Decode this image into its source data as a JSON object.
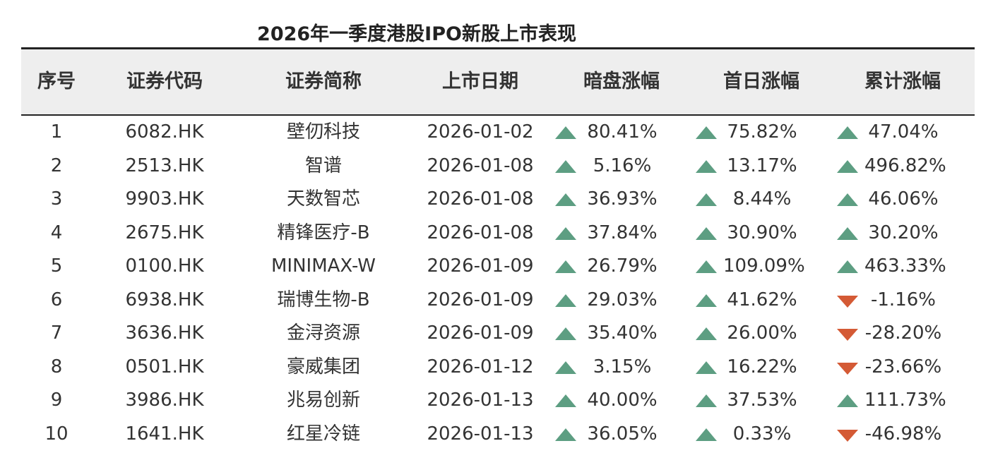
{
  "title": "2026年一季度港股IPO新股上市表现",
  "colors": {
    "up": "#5d9e82",
    "down": "#d45a35",
    "header_bg": "#eeeeee"
  },
  "columns": [
    "序号",
    "证券代码",
    "证券简称",
    "上市日期",
    "暗盘涨幅",
    "首日涨幅",
    "累计涨幅"
  ],
  "rows": [
    {
      "no": "1",
      "code": "6082.HK",
      "name": "壁仞科技",
      "date": "2026-01-02",
      "dark": {
        "dir": "up",
        "value": "80.41%"
      },
      "first": {
        "dir": "up",
        "value": "75.82%"
      },
      "cum": {
        "dir": "up",
        "value": "47.04%"
      }
    },
    {
      "no": "2",
      "code": "2513.HK",
      "name": "智谱",
      "date": "2026-01-08",
      "dark": {
        "dir": "up",
        "value": "5.16%"
      },
      "first": {
        "dir": "up",
        "value": "13.17%"
      },
      "cum": {
        "dir": "up",
        "value": "496.82%"
      }
    },
    {
      "no": "3",
      "code": "9903.HK",
      "name": "天数智芯",
      "date": "2026-01-08",
      "dark": {
        "dir": "up",
        "value": "36.93%"
      },
      "first": {
        "dir": "up",
        "value": "8.44%"
      },
      "cum": {
        "dir": "up",
        "value": "46.06%"
      }
    },
    {
      "no": "4",
      "code": "2675.HK",
      "name": "精锋医疗-B",
      "date": "2026-01-08",
      "dark": {
        "dir": "up",
        "value": "37.84%"
      },
      "first": {
        "dir": "up",
        "value": "30.90%"
      },
      "cum": {
        "dir": "up",
        "value": "30.20%"
      }
    },
    {
      "no": "5",
      "code": "0100.HK",
      "name": "MINIMAX-W",
      "date": "2026-01-09",
      "dark": {
        "dir": "up",
        "value": "26.79%"
      },
      "first": {
        "dir": "up",
        "value": "109.09%"
      },
      "cum": {
        "dir": "up",
        "value": "463.33%"
      }
    },
    {
      "no": "6",
      "code": "6938.HK",
      "name": "瑞博生物-B",
      "date": "2026-01-09",
      "dark": {
        "dir": "up",
        "value": "29.03%"
      },
      "first": {
        "dir": "up",
        "value": "41.62%"
      },
      "cum": {
        "dir": "down",
        "value": "-1.16%"
      }
    },
    {
      "no": "7",
      "code": "3636.HK",
      "name": "金浔资源",
      "date": "2026-01-09",
      "dark": {
        "dir": "up",
        "value": "35.40%"
      },
      "first": {
        "dir": "up",
        "value": "26.00%"
      },
      "cum": {
        "dir": "down",
        "value": "-28.20%"
      }
    },
    {
      "no": "8",
      "code": "0501.HK",
      "name": "豪威集团",
      "date": "2026-01-12",
      "dark": {
        "dir": "up",
        "value": "3.15%"
      },
      "first": {
        "dir": "up",
        "value": "16.22%"
      },
      "cum": {
        "dir": "down",
        "value": "-23.66%"
      }
    },
    {
      "no": "9",
      "code": "3986.HK",
      "name": "兆易创新",
      "date": "2026-01-13",
      "dark": {
        "dir": "up",
        "value": "40.00%"
      },
      "first": {
        "dir": "up",
        "value": "37.53%"
      },
      "cum": {
        "dir": "up",
        "value": "111.73%"
      }
    },
    {
      "no": "10",
      "code": "1641.HK",
      "name": "红星冷链",
      "date": "2026-01-13",
      "dark": {
        "dir": "up",
        "value": "36.05%"
      },
      "first": {
        "dir": "up",
        "value": "0.33%"
      },
      "cum": {
        "dir": "down",
        "value": "-46.98%"
      }
    }
  ]
}
